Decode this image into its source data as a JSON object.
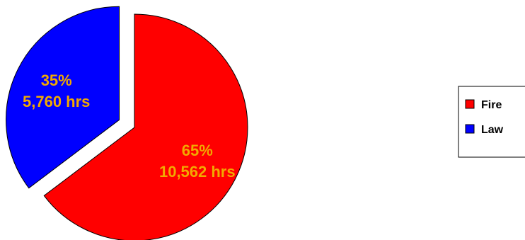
{
  "chart_data": {
    "type": "pie",
    "slices": [
      {
        "name": "Fire",
        "percent_label": "65%",
        "value_label": "10,562 hrs",
        "value": 10562,
        "color": "#ff0000"
      },
      {
        "name": "Law",
        "percent_label": "35%",
        "value_label": "5,760 hrs",
        "value": 5760,
        "color": "#0000ff"
      }
    ],
    "exploded_slice": "Law",
    "legend_position": "right",
    "label_color": "#f2a900"
  }
}
